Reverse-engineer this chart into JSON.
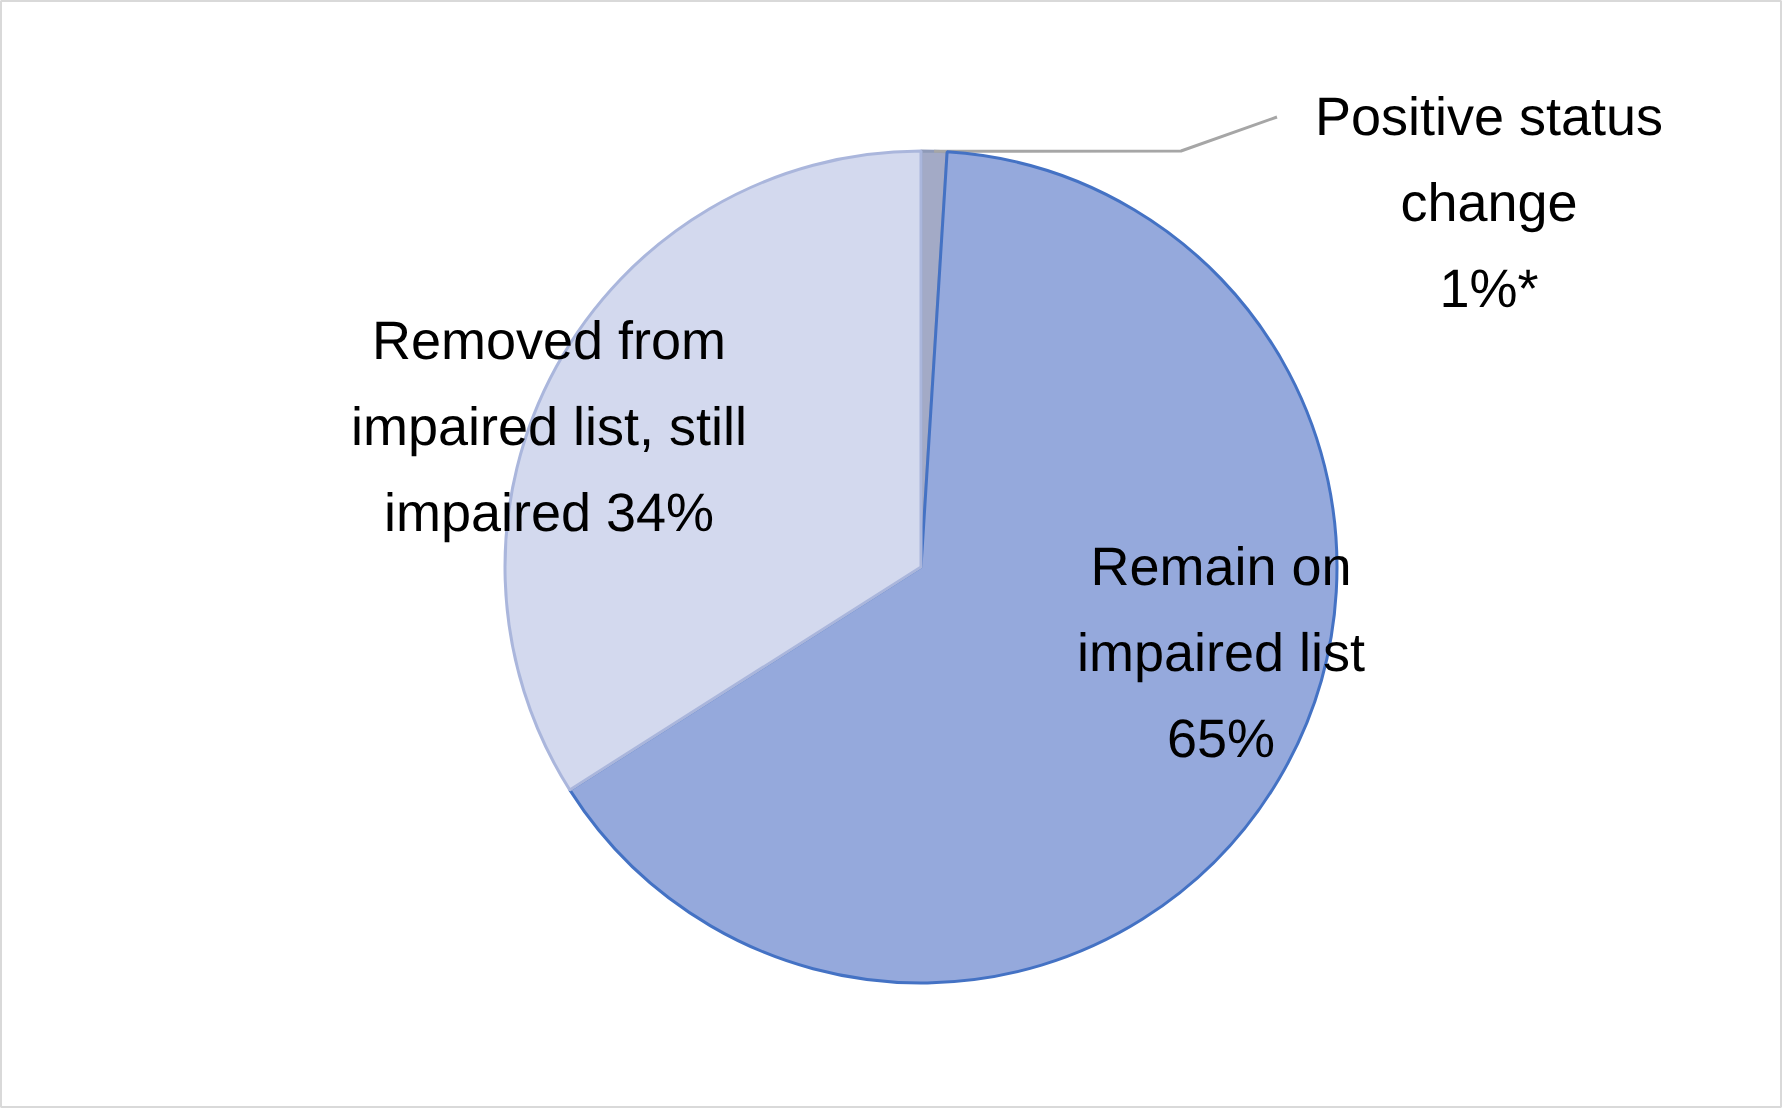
{
  "chart_data": {
    "type": "pie",
    "categories": [
      "Positive status change",
      "Remain on impaired list",
      "Removed from impaired list, still impaired"
    ],
    "values": [
      1,
      65,
      34
    ],
    "value_labels": [
      "1%*",
      "65%",
      "34%"
    ],
    "colors": [
      "#a3aac6",
      "#95a9dc",
      "#d3d9ee"
    ]
  }
}
